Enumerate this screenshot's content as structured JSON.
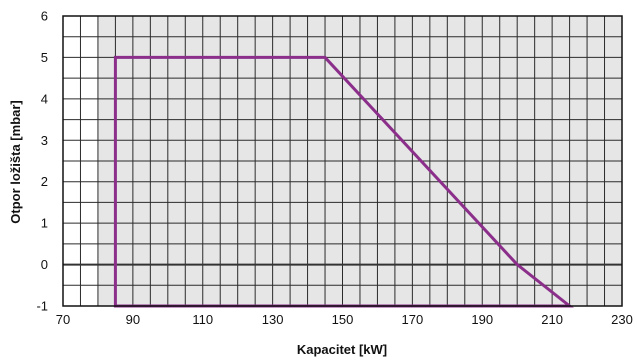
{
  "chart_data": {
    "type": "line",
    "title": "",
    "xlabel": "Kapacitet [kW]",
    "ylabel": "Otpor ložišta  [mbar]",
    "xlim": [
      70,
      230
    ],
    "ylim": [
      -1,
      6
    ],
    "x_ticks": [
      70,
      90,
      110,
      130,
      150,
      170,
      190,
      210,
      230
    ],
    "y_ticks": [
      6,
      5,
      4,
      3,
      2,
      1,
      0,
      -1
    ],
    "x_tick_labels": [
      "70",
      "90",
      "110",
      "130",
      "150",
      "170",
      "190",
      "210",
      "230"
    ],
    "y_tick_labels": [
      "6",
      "5",
      "4",
      "3",
      "2",
      "1",
      "0",
      "-1"
    ],
    "x_minor_step": 5,
    "y_minor_step": 0.5,
    "grid": true,
    "shaded_region": {
      "x_from": 80,
      "x_to": 230,
      "fill": "#e6e6e6"
    },
    "series": [
      {
        "closed": true,
        "color": "#8b2f8b",
        "points": [
          {
            "x": 85,
            "y": -1
          },
          {
            "x": 85,
            "y": 5
          },
          {
            "x": 145,
            "y": 5
          },
          {
            "x": 200,
            "y": 0
          },
          {
            "x": 215,
            "y": -1
          }
        ]
      }
    ],
    "zero_line": {
      "y": 0,
      "color": "#333333"
    }
  }
}
